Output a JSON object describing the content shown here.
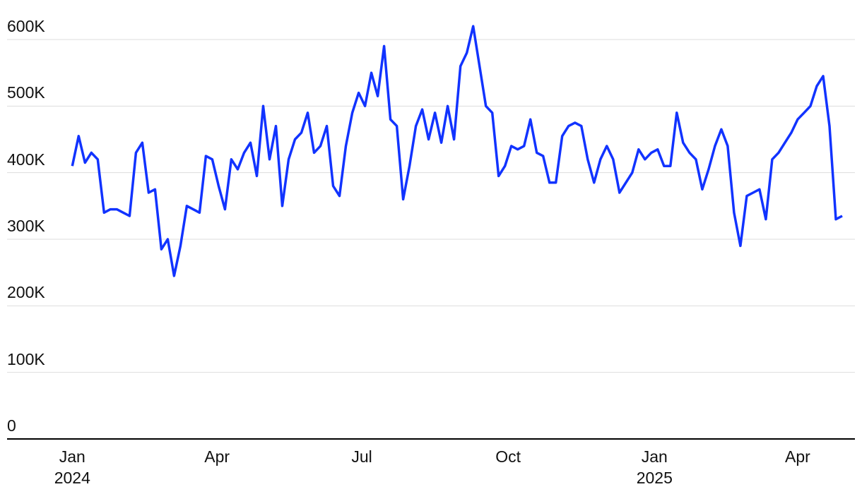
{
  "chart_data": {
    "type": "line",
    "x": [
      0,
      4,
      8,
      12,
      16,
      20,
      24,
      28,
      32,
      36,
      40,
      44,
      48,
      52,
      56,
      60,
      64,
      68,
      72,
      76,
      80,
      84,
      88,
      92,
      96,
      100,
      104,
      108,
      112,
      116,
      120,
      124,
      128,
      132,
      136,
      140,
      144,
      148,
      152,
      156,
      160,
      164,
      168,
      172,
      176,
      180,
      184,
      188,
      192,
      196,
      200,
      204,
      208,
      212,
      216,
      220,
      224,
      228,
      232,
      236,
      240,
      244,
      248,
      252,
      256,
      260,
      264,
      268,
      272,
      276,
      280,
      284,
      288,
      292,
      296,
      300,
      304,
      308,
      312,
      316,
      320,
      324,
      328,
      332,
      336,
      340,
      344,
      348,
      352,
      356,
      360,
      364,
      368,
      372,
      376,
      380,
      384,
      388,
      392,
      396,
      400,
      404,
      408,
      412,
      416,
      420,
      424,
      428,
      432,
      436,
      440,
      444,
      448,
      452,
      456,
      460,
      464,
      468,
      472,
      476,
      480,
      484
    ],
    "series": [
      {
        "color": "#1133ff",
        "values": [
          410000,
          455000,
          415000,
          430000,
          420000,
          340000,
          345000,
          345000,
          340000,
          335000,
          430000,
          445000,
          370000,
          375000,
          285000,
          300000,
          245000,
          290000,
          350000,
          345000,
          340000,
          425000,
          420000,
          380000,
          345000,
          420000,
          405000,
          430000,
          445000,
          395000,
          500000,
          420000,
          470000,
          350000,
          420000,
          450000,
          460000,
          490000,
          430000,
          440000,
          470000,
          380000,
          365000,
          440000,
          490000,
          520000,
          500000,
          550000,
          515000,
          590000,
          480000,
          470000,
          360000,
          410000,
          470000,
          495000,
          450000,
          490000,
          445000,
          500000,
          450000,
          560000,
          580000,
          620000,
          560000,
          500000,
          490000,
          395000,
          410000,
          440000,
          435000,
          440000,
          480000,
          430000,
          425000,
          385000,
          385000,
          455000,
          470000,
          475000,
          470000,
          420000,
          385000,
          420000,
          440000,
          420000,
          370000,
          385000,
          400000,
          435000,
          420000,
          430000,
          435000,
          410000,
          410000,
          490000,
          445000,
          430000,
          420000,
          375000,
          405000,
          440000,
          465000,
          440000,
          340000,
          290000,
          365000,
          370000,
          375000,
          330000,
          420000,
          430000,
          445000,
          460000,
          480000,
          490000,
          500000,
          530000,
          545000,
          470000,
          330000,
          335000
        ]
      }
    ],
    "xlim": [
      -41,
      492
    ],
    "xticks": [
      {
        "value": 0,
        "label": "Jan 2024"
      },
      {
        "value": 91,
        "label": "Apr"
      },
      {
        "value": 182,
        "label": "Jul"
      },
      {
        "value": 274,
        "label": "Oct"
      },
      {
        "value": 366,
        "label": "Jan 2025"
      },
      {
        "value": 456,
        "label": "Apr"
      }
    ],
    "ylim": [
      0,
      600000
    ],
    "yticks": [
      0,
      {
        "value": 100000,
        "label": "100K"
      },
      {
        "value": 200000,
        "label": "200K"
      },
      {
        "value": 300000,
        "label": "300K"
      },
      {
        "value": 400000,
        "label": "400K"
      },
      {
        "value": 500000,
        "label": "500K"
      },
      {
        "value": 600000,
        "label": "600K"
      }
    ],
    "grid": true
  }
}
